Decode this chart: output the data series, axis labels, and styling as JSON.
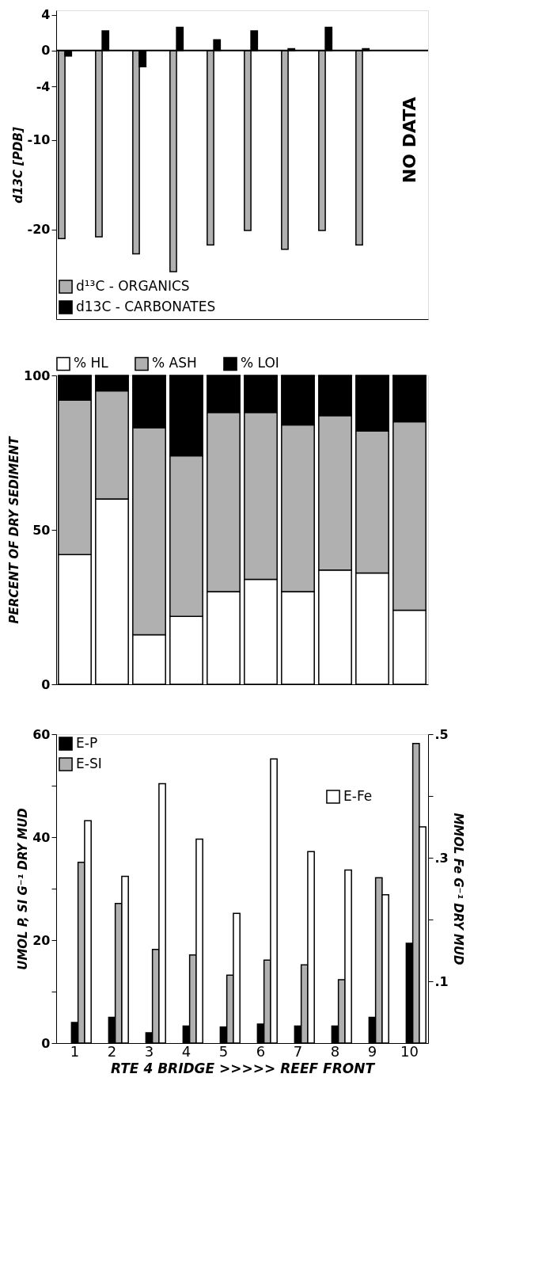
{
  "chart_data": [
    {
      "type": "bar",
      "ylabel": "d13C  [PDB]",
      "categories": [
        "1",
        "2",
        "3",
        "4",
        "5",
        "6",
        "7",
        "8",
        "9",
        "10"
      ],
      "ylim": [
        -30,
        4.5
      ],
      "yticks": [
        4,
        0,
        -4,
        -10,
        -20
      ],
      "grid": false,
      "legend": "bottom left",
      "tick_labels": "y",
      "series": [
        {
          "name": "d¹³C - ORGANICS",
          "color": "#b0b0b0",
          "values": [
            -21.0,
            -20.8,
            -22.7,
            -24.7,
            -21.7,
            -20.1,
            -22.2,
            -20.1,
            -21.7,
            null
          ]
        },
        {
          "name": "d13C - CARBONATES",
          "color": "#000000",
          "values": [
            -0.6,
            2.2,
            -1.8,
            2.6,
            1.2,
            2.2,
            0.2,
            2.6,
            0.2,
            null
          ]
        }
      ],
      "ref_lines": [
        {
          "axis": "y",
          "value": 0
        }
      ],
      "annotations": [
        "NO DATA"
      ]
    },
    {
      "type": "bar",
      "stacked": true,
      "ylabel": "PERCENT OF DRY SEDIMENT",
      "categories": [
        "1",
        "2",
        "3",
        "4",
        "5",
        "6",
        "7",
        "8",
        "9",
        "10"
      ],
      "ylim": [
        0,
        100
      ],
      "yticks": [
        0,
        50,
        100
      ],
      "grid": false,
      "legend": "top",
      "tick_labels": "y",
      "series": [
        {
          "name": "% HL",
          "color": "#ffffff",
          "values": [
            42,
            60,
            16,
            22,
            30,
            34,
            30,
            37,
            36,
            24
          ]
        },
        {
          "name": "% ASH",
          "color": "#b0b0b0",
          "values": [
            50,
            35,
            67,
            52,
            58,
            54,
            54,
            50,
            46,
            61
          ]
        },
        {
          "name": "% LOI",
          "color": "#000000",
          "values": [
            8,
            5,
            17,
            26,
            12,
            12,
            16,
            13,
            18,
            15
          ]
        }
      ]
    },
    {
      "type": "bar",
      "ylabel": "UMOL P, SI G⁻¹ DRY MUD",
      "y2label": "MMOL Fe G⁻¹ DRY MUD",
      "xlabel": "RTE 4 BRIDGE >>>>> REEF FRONT",
      "categories": [
        "1",
        "2",
        "3",
        "4",
        "5",
        "6",
        "7",
        "8",
        "9",
        "10"
      ],
      "ylim": [
        0,
        60
      ],
      "yticks": [
        0,
        {
          "value": 10,
          "label": null
        },
        20,
        {
          "value": 30,
          "label": null
        },
        40,
        {
          "value": 50,
          "label": null
        },
        60
      ],
      "y2lim": [
        0,
        0.5
      ],
      "y2ticks": [
        {
          "value": 0.1,
          "label": ".1"
        },
        {
          "value": 0.2,
          "label": null
        },
        {
          "value": 0.3,
          "label": ".3"
        },
        {
          "value": 0.4,
          "label": null
        },
        {
          "value": 0.5,
          "label": ".5"
        }
      ],
      "grid": false,
      "legend": "top left",
      "series": [
        {
          "name": "E-P",
          "color": "#000000",
          "values": [
            4.0,
            5.0,
            2.0,
            3.3,
            3.1,
            3.7,
            3.3,
            3.3,
            5.0,
            19.4
          ]
        },
        {
          "name": "E-SI",
          "color": "#b0b0b0",
          "values": [
            35.1,
            27.1,
            18.2,
            17.1,
            13.2,
            16.1,
            15.2,
            12.3,
            32.1,
            58.2
          ]
        },
        {
          "name": "E-Fe",
          "color": "#ffffff",
          "axis": "y2",
          "values": [
            0.36,
            0.27,
            0.42,
            0.33,
            0.21,
            0.46,
            0.31,
            0.28,
            0.24,
            0.35
          ]
        }
      ]
    }
  ]
}
